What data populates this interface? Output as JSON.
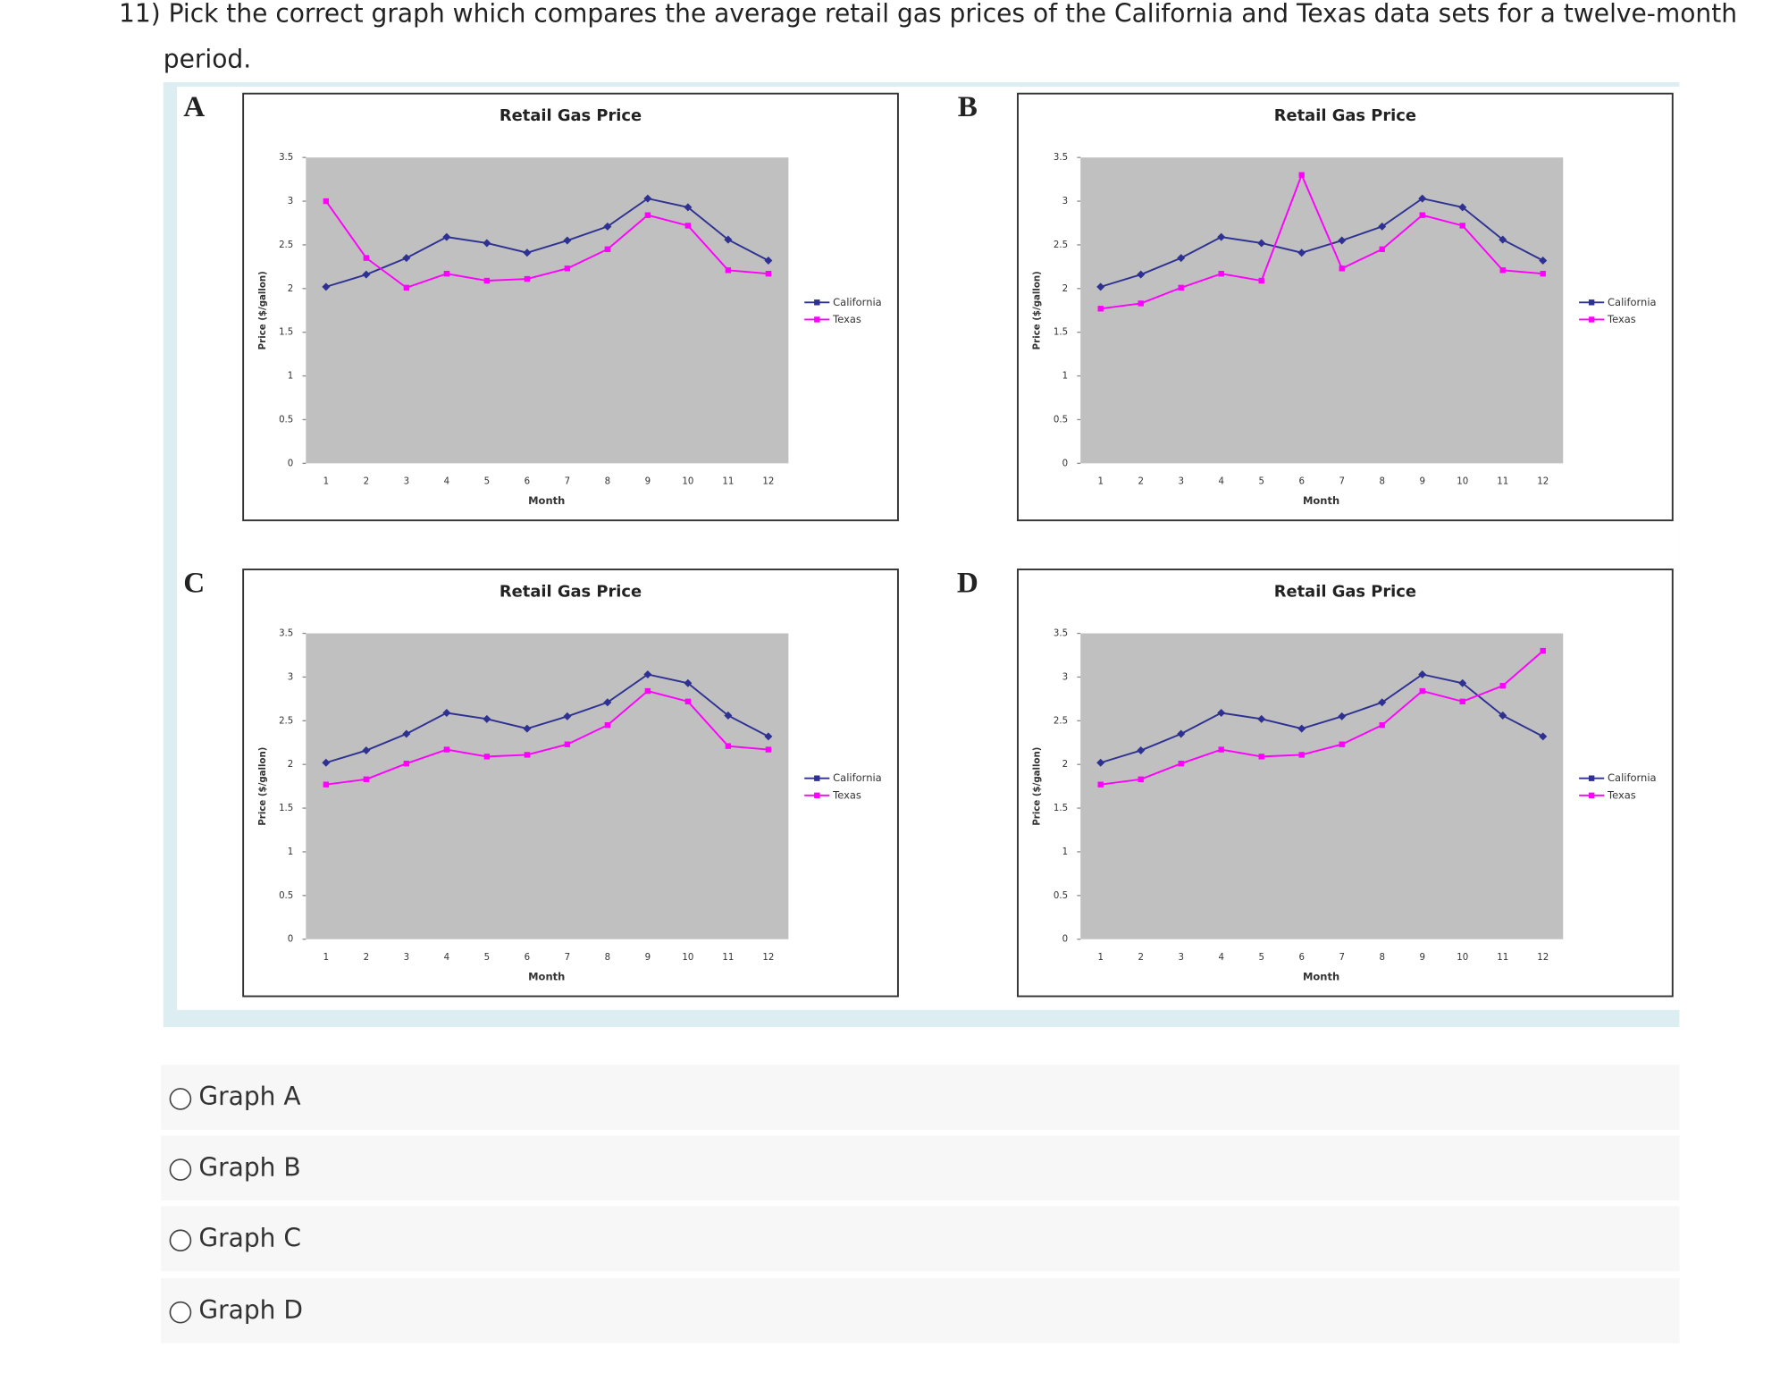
{
  "question": "11) Pick the correct graph which compares the average retail gas prices of the California and Texas data sets for a twelve-month",
  "question_cont": "period.",
  "chart_data": [
    {
      "type": "line",
      "label": "A",
      "title": "Retail Gas Price",
      "x_label": "Month",
      "y_label": "Price ($/gallon)",
      "categories": [
        "1",
        "2",
        "3",
        "4",
        "5",
        "6",
        "7",
        "8",
        "9",
        "10",
        "11",
        "12"
      ],
      "ylim": [
        0,
        3.5
      ],
      "yticks": [
        0,
        0.5,
        1,
        1.5,
        2,
        2.5,
        3,
        3.5
      ],
      "series": [
        {
          "name": "California",
          "color": "#2e3192",
          "values": [
            2.02,
            2.16,
            2.35,
            2.59,
            2.52,
            2.41,
            2.55,
            2.71,
            3.03,
            2.93,
            2.56,
            2.32
          ]
        },
        {
          "name": "Texas",
          "color": "#ff00ff",
          "values": [
            3.0,
            2.35,
            2.01,
            2.17,
            2.09,
            2.11,
            2.23,
            2.45,
            2.84,
            2.72,
            2.21,
            2.17
          ]
        }
      ]
    },
    {
      "type": "line",
      "label": "B",
      "title": "Retail Gas Price",
      "x_label": "Month",
      "y_label": "Price ($/gallon)",
      "categories": [
        "1",
        "2",
        "3",
        "4",
        "5",
        "6",
        "7",
        "8",
        "9",
        "10",
        "11",
        "12"
      ],
      "ylim": [
        0,
        3.5
      ],
      "yticks": [
        0,
        0.5,
        1,
        1.5,
        2,
        2.5,
        3,
        3.5
      ],
      "series": [
        {
          "name": "California",
          "color": "#2e3192",
          "values": [
            2.02,
            2.16,
            2.35,
            2.59,
            2.52,
            2.41,
            2.55,
            2.71,
            3.03,
            2.93,
            2.56,
            2.32
          ]
        },
        {
          "name": "Texas",
          "color": "#ff00ff",
          "values": [
            1.77,
            1.83,
            2.01,
            2.17,
            2.09,
            3.3,
            2.23,
            2.45,
            2.84,
            2.72,
            2.21,
            2.17
          ]
        }
      ]
    },
    {
      "type": "line",
      "label": "C",
      "title": "Retail Gas Price",
      "x_label": "Month",
      "y_label": "Price ($/gallon)",
      "categories": [
        "1",
        "2",
        "3",
        "4",
        "5",
        "6",
        "7",
        "8",
        "9",
        "10",
        "11",
        "12"
      ],
      "ylim": [
        0,
        3.5
      ],
      "yticks": [
        0,
        0.5,
        1,
        1.5,
        2,
        2.5,
        3,
        3.5
      ],
      "series": [
        {
          "name": "California",
          "color": "#2e3192",
          "values": [
            2.02,
            2.16,
            2.35,
            2.59,
            2.52,
            2.41,
            2.55,
            2.71,
            3.03,
            2.93,
            2.56,
            2.32
          ]
        },
        {
          "name": "Texas",
          "color": "#ff00ff",
          "values": [
            1.77,
            1.83,
            2.01,
            2.17,
            2.09,
            2.11,
            2.23,
            2.45,
            2.84,
            2.72,
            2.21,
            2.17
          ]
        }
      ]
    },
    {
      "type": "line",
      "label": "D",
      "title": "Retail Gas Price",
      "x_label": "Month",
      "y_label": "Price ($/gallon)",
      "categories": [
        "1",
        "2",
        "3",
        "4",
        "5",
        "6",
        "7",
        "8",
        "9",
        "10",
        "11",
        "12"
      ],
      "ylim": [
        0,
        3.5
      ],
      "yticks": [
        0,
        0.5,
        1,
        1.5,
        2,
        2.5,
        3,
        3.5
      ],
      "series": [
        {
          "name": "California",
          "color": "#2e3192",
          "values": [
            2.02,
            2.16,
            2.35,
            2.59,
            2.52,
            2.41,
            2.55,
            2.71,
            3.03,
            2.93,
            2.56,
            2.32
          ]
        },
        {
          "name": "Texas",
          "color": "#ff00ff",
          "values": [
            1.77,
            1.83,
            2.01,
            2.17,
            2.09,
            2.11,
            2.23,
            2.45,
            2.84,
            2.72,
            2.9,
            3.3
          ]
        }
      ]
    }
  ],
  "options": [
    "Graph A",
    "Graph B",
    "Graph C",
    "Graph D"
  ]
}
